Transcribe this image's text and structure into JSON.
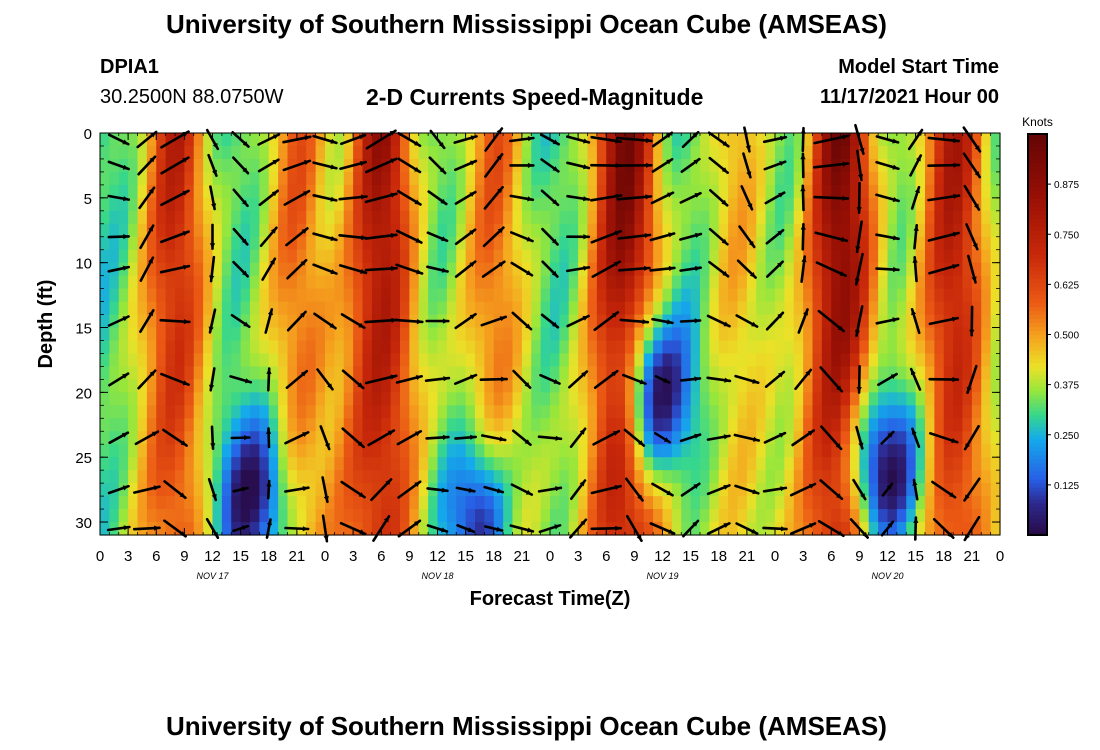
{
  "header": {
    "title": "University of Southern Mississippi Ocean Cube (AMSEAS)",
    "station": "DPIA1",
    "coords": "30.2500N  88.0750W",
    "subtitle": "2-D Currents Speed-Magnitude",
    "model_start_label": "Model Start Time",
    "model_start_value": "11/17/2021 Hour 00"
  },
  "footer": {
    "title": "University of Southern Mississippi Ocean Cube (AMSEAS)"
  },
  "chart_data": {
    "type": "heatmap",
    "title": "2-D Currents Speed-Magnitude",
    "xlabel": "Forecast Time(Z)",
    "ylabel": "Depth (ft)",
    "x_range": [
      0,
      96
    ],
    "x_unit": "hours from model start",
    "x_tick_labels": [
      "0",
      "3",
      "6",
      "9",
      "12",
      "15",
      "18",
      "21",
      "0",
      "3",
      "6",
      "9",
      "12",
      "15",
      "18",
      "21",
      "0",
      "3",
      "6",
      "9",
      "12",
      "15",
      "18",
      "21",
      "0",
      "3",
      "6",
      "9",
      "12",
      "15",
      "18",
      "21",
      "0"
    ],
    "day_labels": [
      "NOV 17",
      "NOV 18",
      "NOV 19",
      "NOV 20"
    ],
    "y_range": [
      0,
      31
    ],
    "y_ticks": [
      0,
      5,
      10,
      15,
      20,
      25,
      30
    ],
    "y_inverted": true,
    "colorbar": {
      "title": "Knots",
      "range": [
        0,
        1.0
      ],
      "ticks": [
        "0.875",
        "0.750",
        "0.625",
        "0.500",
        "0.375",
        "0.250",
        "0.125"
      ],
      "tick_values": [
        0.875,
        0.75,
        0.625,
        0.5,
        0.375,
        0.25,
        0.125
      ]
    },
    "speed_peaks_knots": [
      {
        "hour": 8,
        "speed": 0.75
      },
      {
        "hour": 21,
        "speed": 0.6
      },
      {
        "hour": 30,
        "speed": 0.85
      },
      {
        "hour": 42,
        "speed": 0.6
      },
      {
        "hour": 56,
        "speed": 0.95
      },
      {
        "hour": 68,
        "speed": 0.5
      },
      {
        "hour": 79,
        "speed": 0.95
      },
      {
        "hour": 91,
        "speed": 0.8
      }
    ],
    "low_speed_zones": [
      {
        "hour": 16,
        "depth_ft": 28,
        "speed": 0.02
      },
      {
        "hour": 40,
        "depth_ft": 30,
        "speed": 0.08
      },
      {
        "hour": 60,
        "depth_ft": 20,
        "speed": 0.05
      },
      {
        "hour": 84,
        "depth_ft": 26,
        "speed": 0.02
      }
    ],
    "vector_hours": [
      2,
      5,
      8,
      12,
      15,
      18,
      21,
      24,
      27,
      30,
      33,
      36,
      39,
      42,
      45,
      48,
      51,
      54,
      57,
      60,
      63,
      66,
      69,
      72,
      75,
      78,
      81,
      84,
      87,
      90,
      93
    ],
    "vector_depths_ft": [
      0.5,
      2.5,
      5,
      8,
      10.5,
      14.5,
      19,
      23.5,
      27.5,
      30.5
    ]
  }
}
